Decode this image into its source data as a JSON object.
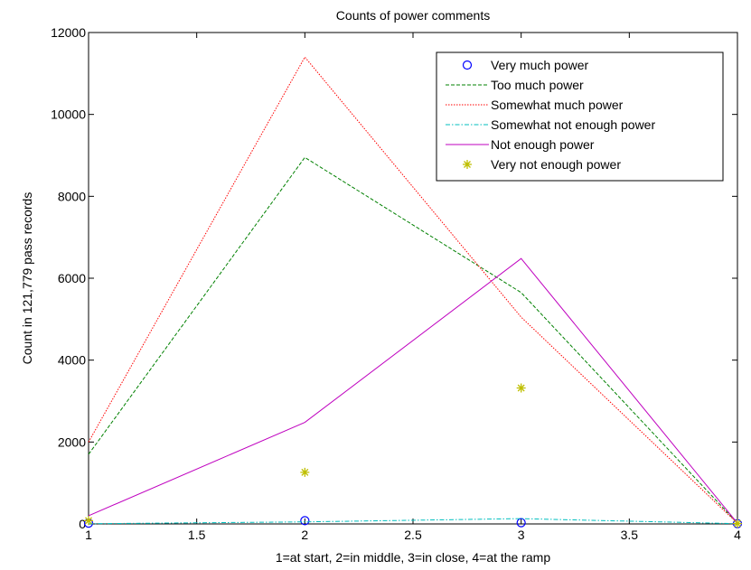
{
  "chart_data": {
    "type": "line",
    "title": "Counts of power comments",
    "xlabel": "1=at start, 2=in middle, 3=in close, 4=at the ramp",
    "ylabel": "Count in 121,779 pass records",
    "xlim": [
      1,
      4
    ],
    "ylim": [
      0,
      12000
    ],
    "xticks": [
      1,
      1.5,
      2,
      2.5,
      3,
      3.5,
      4
    ],
    "xtick_labels": [
      "1",
      "1.5",
      "2",
      "2.5",
      "3",
      "3.5",
      "4"
    ],
    "yticks": [
      0,
      2000,
      4000,
      6000,
      8000,
      10000,
      12000
    ],
    "ytick_labels": [
      "0",
      "2000",
      "4000",
      "6000",
      "8000",
      "10000",
      "12000"
    ],
    "grid": false,
    "legend_position": "top-right",
    "x": [
      1,
      2,
      3,
      4
    ],
    "series": [
      {
        "name": "Very much power",
        "values": [
          20,
          80,
          30,
          5
        ],
        "color": "#0000ff",
        "style": "marker-circle"
      },
      {
        "name": "Too much power",
        "values": [
          1700,
          8950,
          5650,
          20
        ],
        "color": "#008000",
        "style": "dashed"
      },
      {
        "name": "Somewhat much power",
        "values": [
          2000,
          11400,
          5050,
          15
        ],
        "color": "#ff0000",
        "style": "dotted"
      },
      {
        "name": "Somewhat not enough power",
        "values": [
          5,
          50,
          130,
          5
        ],
        "color": "#00bfbf",
        "style": "dashdot"
      },
      {
        "name": "Not enough power",
        "values": [
          200,
          2480,
          6480,
          20
        ],
        "color": "#bf00bf",
        "style": "solid"
      },
      {
        "name": "Very not enough power",
        "values": [
          80,
          1260,
          3320,
          10
        ],
        "color": "#bfbf00",
        "style": "marker-star"
      }
    ]
  }
}
